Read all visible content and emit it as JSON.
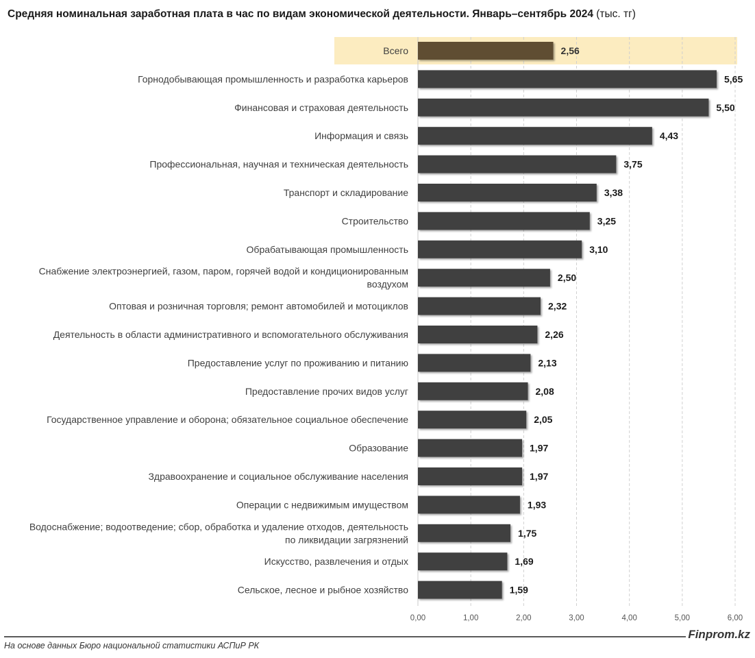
{
  "header": {
    "title": "Средняя номинальная заработная плата в час по видам экономической деятельности. Январь–сентябрь 2024",
    "unit": "(тыс. тг)"
  },
  "chart_data": {
    "type": "bar",
    "orientation": "horizontal",
    "categories": [
      "Всего",
      "Горнодобывающая промышленность и разработка карьеров",
      "Финансовая и страховая деятельность",
      "Информация и связь",
      "Профессиональная, научная и техническая деятельность",
      "Транспорт и складирование",
      "Строительство",
      "Обрабатывающая промышленность",
      "Снабжение электроэнергией, газом, паром, горячей водой и кондиционированным воздухом",
      "Оптовая и розничная торговля; ремонт автомобилей и мотоциклов",
      "Деятельность в области административного и вспомогательного обслуживания",
      "Предоставление услуг по проживанию и питанию",
      "Предоставление прочих видов услуг",
      "Государственное управление и оборона; обязательное социальное обеспечение",
      "Образование",
      "Здравоохранение и социальное обслуживание населения",
      "Операции с недвижимым имуществом",
      "Водоснабжение; водоотведение; сбор, обработка и удаление отходов, деятельность по ликвидации загрязнений",
      "Искусство, развлечения и отдых",
      "Сельское, лесное и рыбное хозяйство"
    ],
    "category_lines": [
      [
        "Всего"
      ],
      [
        "Горнодобывающая промышленность и разработка карьеров"
      ],
      [
        "Финансовая и страховая деятельность"
      ],
      [
        "Информация и связь"
      ],
      [
        "Профессиональная, научная и техническая деятельность"
      ],
      [
        "Транспорт и складирование"
      ],
      [
        "Строительство"
      ],
      [
        "Обрабатывающая промышленность"
      ],
      [
        "Снабжение электроэнергией, газом, паром, горячей водой и кондиционированным",
        "воздухом"
      ],
      [
        "Оптовая и розничная торговля; ремонт автомобилей и мотоциклов"
      ],
      [
        "Деятельность в области административного и вспомогательного обслуживания"
      ],
      [
        "Предоставление услуг по проживанию и питанию"
      ],
      [
        "Предоставление прочих видов услуг"
      ],
      [
        "Государственное управление и оборона; обязательное социальное обеспечение"
      ],
      [
        "Образование"
      ],
      [
        "Здравоохранение и социальное обслуживание населения"
      ],
      [
        "Операции с недвижимым имуществом"
      ],
      [
        "Водоснабжение; водоотведение; сбор, обработка и удаление отходов, деятельность",
        "по ликвидации загрязнений"
      ],
      [
        "Искусство, развлечения и отдых"
      ],
      [
        "Сельское, лесное и рыбное хозяйство"
      ]
    ],
    "values": [
      2.56,
      5.65,
      5.5,
      4.43,
      3.75,
      3.38,
      3.25,
      3.1,
      2.5,
      2.32,
      2.26,
      2.13,
      2.08,
      2.05,
      1.97,
      1.97,
      1.93,
      1.75,
      1.69,
      1.59
    ],
    "value_labels": [
      "2,56",
      "5,65",
      "5,50",
      "4,43",
      "3,75",
      "3,38",
      "3,25",
      "3,10",
      "2,50",
      "2,32",
      "2,26",
      "2,13",
      "2,08",
      "2,05",
      "1,97",
      "1,97",
      "1,93",
      "1,75",
      "1,69",
      "1,59"
    ],
    "highlight_index": 0,
    "xlim": [
      0,
      6
    ],
    "xticks": [
      0,
      1,
      2,
      3,
      4,
      5,
      6
    ],
    "xtick_labels": [
      "0,00",
      "1,00",
      "2,00",
      "3,00",
      "4,00",
      "5,00",
      "6,00"
    ],
    "grid": "vertical-dashed",
    "legend": "none",
    "xlabel": "",
    "ylabel": "",
    "colors": {
      "bar": "#404040",
      "highlight_bar": "#5f4d31",
      "highlight_band": "#fcecc0",
      "grid": "#d0d0d0",
      "label": "#404040"
    }
  },
  "footer": {
    "brand": "Finprom.kz",
    "source": "На основе данных Бюро национальной статистики АСПиР РК"
  }
}
